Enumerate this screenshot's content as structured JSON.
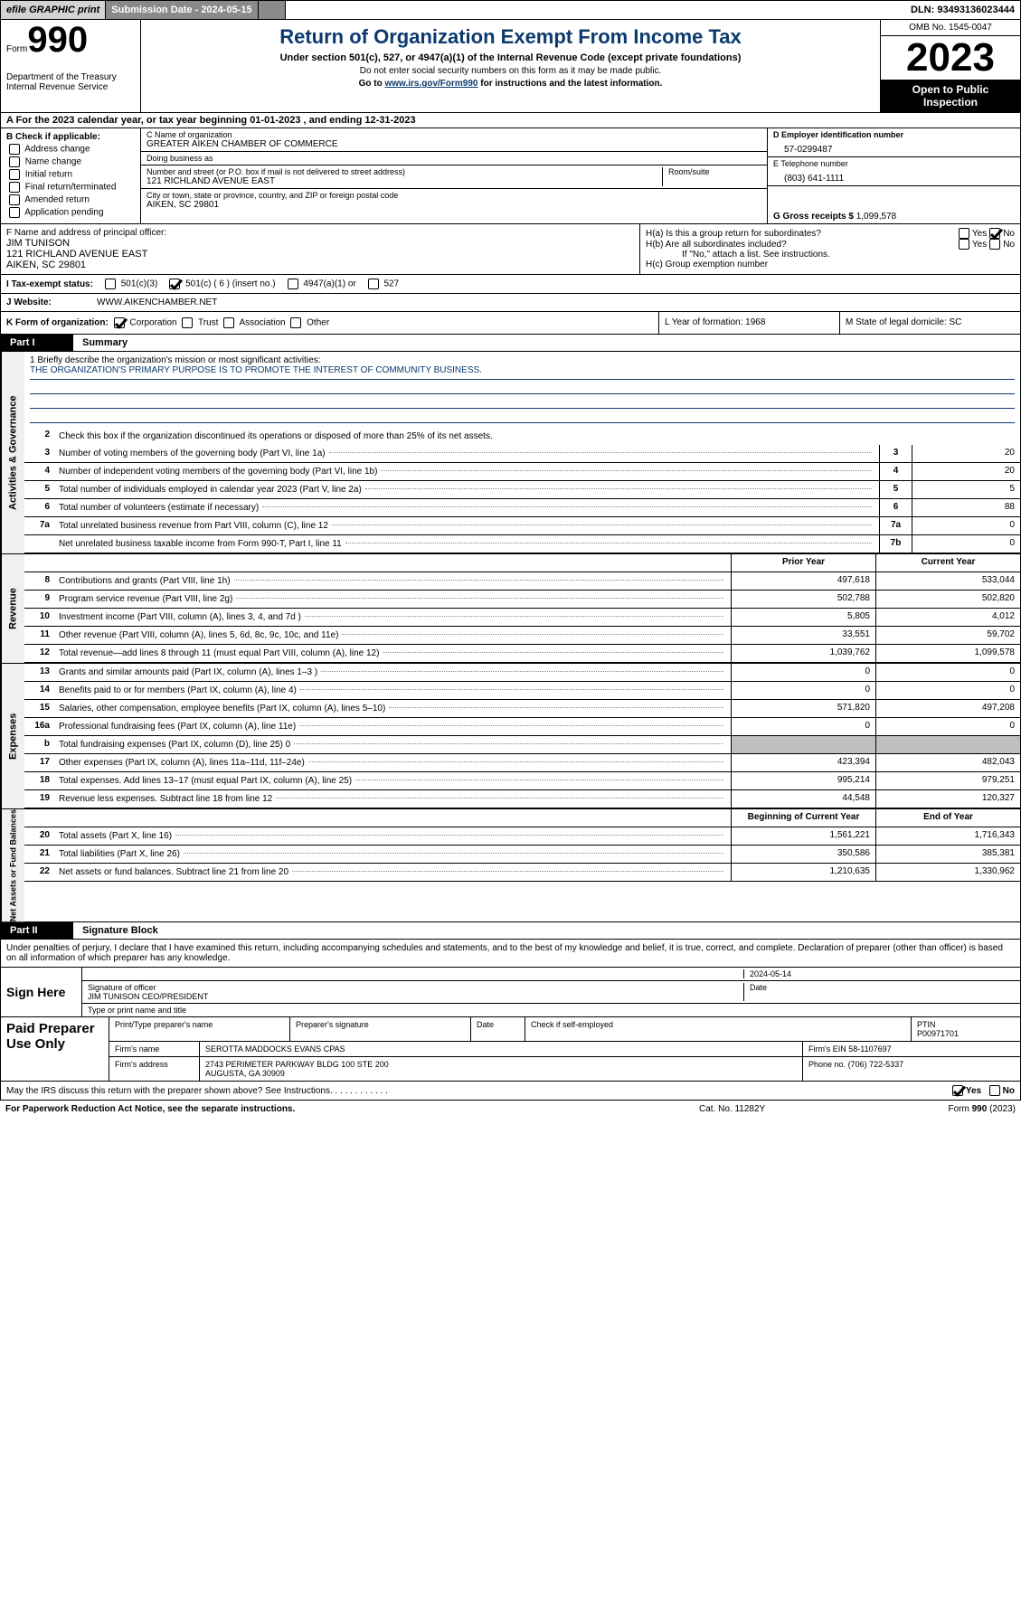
{
  "topbar": {
    "efile": "efile GRAPHIC print",
    "submission": "Submission Date - 2024-05-15",
    "dln": "DLN: 93493136023444"
  },
  "header": {
    "form_label": "Form",
    "form_no": "990",
    "dept": "Department of the Treasury Internal Revenue Service",
    "title": "Return of Organization Exempt From Income Tax",
    "sub": "Under section 501(c), 527, or 4947(a)(1) of the Internal Revenue Code (except private foundations)",
    "note1": "Do not enter social security numbers on this form as it may be made public.",
    "goto_pre": "Go to ",
    "goto_link": "www.irs.gov/Form990",
    "goto_post": " for instructions and the latest information.",
    "omb": "OMB No. 1545-0047",
    "year": "2023",
    "open": "Open to Public Inspection"
  },
  "line_a": "A  For the 2023 calendar year, or tax year beginning 01-01-2023    , and ending 12-31-2023",
  "col_b": {
    "hdr": "B Check if applicable:",
    "items": [
      "Address change",
      "Name change",
      "Initial return",
      "Final return/terminated",
      "Amended return",
      "Application pending"
    ]
  },
  "col_c": {
    "name_lbl": "C Name of organization",
    "name": "GREATER AIKEN CHAMBER OF COMMERCE",
    "dba_lbl": "Doing business as",
    "dba": "",
    "addr_lbl": "Number and street (or P.O. box if mail is not delivered to street address)",
    "addr": "121 RICHLAND AVENUE EAST",
    "room_lbl": "Room/suite",
    "city_lbl": "City or town, state or province, country, and ZIP or foreign postal code",
    "city": "AIKEN, SC  29801"
  },
  "col_d": {
    "ein_lbl": "D Employer identification number",
    "ein": "57-0299487",
    "tel_lbl": "E Telephone number",
    "tel": "(803) 641-1111",
    "gross_lbl": "G Gross receipts $",
    "gross": "1,099,578"
  },
  "officer": {
    "lbl": "F  Name and address of principal officer:",
    "name": "JIM TUNISON",
    "addr1": "121 RICHLAND AVENUE EAST",
    "addr2": "AIKEN, SC  29801"
  },
  "h_block": {
    "ha": "H(a)  Is this a group return for subordinates?",
    "hb": "H(b)  Are all subordinates included?",
    "hb_note": "If \"No,\" attach a list. See instructions.",
    "hc": "H(c)  Group exemption number"
  },
  "exempt": {
    "lbl": "I   Tax-exempt status:",
    "o1": "501(c)(3)",
    "o2": "501(c) ( 6 ) (insert no.)",
    "o3": "4947(a)(1) or",
    "o4": "527"
  },
  "website": {
    "lbl": "J   Website:",
    "val": "WWW.AIKENCHAMBER.NET"
  },
  "row_k": {
    "lbl": "K Form of organization:",
    "opts": [
      "Corporation",
      "Trust",
      "Association",
      "Other"
    ],
    "l": "L Year of formation: 1968",
    "m": "M State of legal domicile: SC"
  },
  "part1": {
    "num": "Part I",
    "title": "Summary"
  },
  "mission": {
    "q": "1   Briefly describe the organization's mission or most significant activities:",
    "a": "THE ORGANIZATION'S PRIMARY PURPOSE IS TO PROMOTE THE INTEREST OF COMMUNITY BUSINESS."
  },
  "gov_section": {
    "vtab": "Activities & Governance",
    "l2": "Check this box        if the organization discontinued its operations or disposed of more than 25% of its net assets.",
    "rows": [
      {
        "n": "3",
        "d": "Number of voting members of the governing body (Part VI, line 1a)",
        "c": "3",
        "v": "20"
      },
      {
        "n": "4",
        "d": "Number of independent voting members of the governing body (Part VI, line 1b)",
        "c": "4",
        "v": "20"
      },
      {
        "n": "5",
        "d": "Total number of individuals employed in calendar year 2023 (Part V, line 2a)",
        "c": "5",
        "v": "5"
      },
      {
        "n": "6",
        "d": "Total number of volunteers (estimate if necessary)",
        "c": "6",
        "v": "88"
      },
      {
        "n": "7a",
        "d": "Total unrelated business revenue from Part VIII, column (C), line 12",
        "c": "7a",
        "v": "0"
      },
      {
        "n": "",
        "d": "Net unrelated business taxable income from Form 990-T, Part I, line 11",
        "c": "7b",
        "v": "0"
      }
    ]
  },
  "rev_section": {
    "vtab": "Revenue",
    "hdr_prior": "Prior Year",
    "hdr_curr": "Current Year",
    "rows": [
      {
        "n": "8",
        "d": "Contributions and grants (Part VIII, line 1h)",
        "p": "497,618",
        "c": "533,044"
      },
      {
        "n": "9",
        "d": "Program service revenue (Part VIII, line 2g)",
        "p": "502,788",
        "c": "502,820"
      },
      {
        "n": "10",
        "d": "Investment income (Part VIII, column (A), lines 3, 4, and 7d )",
        "p": "5,805",
        "c": "4,012"
      },
      {
        "n": "11",
        "d": "Other revenue (Part VIII, column (A), lines 5, 6d, 8c, 9c, 10c, and 11e)",
        "p": "33,551",
        "c": "59,702"
      },
      {
        "n": "12",
        "d": "Total revenue—add lines 8 through 11 (must equal Part VIII, column (A), line 12)",
        "p": "1,039,762",
        "c": "1,099,578"
      }
    ]
  },
  "exp_section": {
    "vtab": "Expenses",
    "rows": [
      {
        "n": "13",
        "d": "Grants and similar amounts paid (Part IX, column (A), lines 1–3 )",
        "p": "0",
        "c": "0"
      },
      {
        "n": "14",
        "d": "Benefits paid to or for members (Part IX, column (A), line 4)",
        "p": "0",
        "c": "0"
      },
      {
        "n": "15",
        "d": "Salaries, other compensation, employee benefits (Part IX, column (A), lines 5–10)",
        "p": "571,820",
        "c": "497,208"
      },
      {
        "n": "16a",
        "d": "Professional fundraising fees (Part IX, column (A), line 11e)",
        "p": "0",
        "c": "0"
      },
      {
        "n": "b",
        "d": "Total fundraising expenses (Part IX, column (D), line 25) 0",
        "p": "",
        "c": "",
        "grey": true
      },
      {
        "n": "17",
        "d": "Other expenses (Part IX, column (A), lines 11a–11d, 11f–24e)",
        "p": "423,394",
        "c": "482,043"
      },
      {
        "n": "18",
        "d": "Total expenses. Add lines 13–17 (must equal Part IX, column (A), line 25)",
        "p": "995,214",
        "c": "979,251"
      },
      {
        "n": "19",
        "d": "Revenue less expenses. Subtract line 18 from line 12",
        "p": "44,548",
        "c": "120,327"
      }
    ]
  },
  "net_section": {
    "vtab": "Net Assets or Fund Balances",
    "hdr_beg": "Beginning of Current Year",
    "hdr_end": "End of Year",
    "rows": [
      {
        "n": "20",
        "d": "Total assets (Part X, line 16)",
        "p": "1,561,221",
        "c": "1,716,343"
      },
      {
        "n": "21",
        "d": "Total liabilities (Part X, line 26)",
        "p": "350,586",
        "c": "385,381"
      },
      {
        "n": "22",
        "d": "Net assets or fund balances. Subtract line 21 from line 20",
        "p": "1,210,635",
        "c": "1,330,962"
      }
    ]
  },
  "part2": {
    "num": "Part II",
    "title": "Signature Block"
  },
  "sig_intro": "Under penalties of perjury, I declare that I have examined this return, including accompanying schedules and statements, and to the best of my knowledge and belief, it is true, correct, and complete. Declaration of preparer (other than officer) is based on all information of which preparer has any knowledge.",
  "sign": {
    "lbl": "Sign Here",
    "date": "2024-05-14",
    "sig_lbl": "Signature of officer",
    "officer": "JIM TUNISON CEO/PRESIDENT",
    "type_lbl": "Type or print name and title",
    "date_lbl": "Date"
  },
  "prep": {
    "lbl": "Paid Preparer Use Only",
    "pname_lbl": "Print/Type preparer's name",
    "psig_lbl": "Preparer's signature",
    "pdate_lbl": "Date",
    "self_lbl": "Check         if self-employed",
    "ptin_lbl": "PTIN",
    "ptin": "P00971701",
    "firm_lbl": "Firm's name",
    "firm": "SEROTTA MADDOCKS EVANS CPAS",
    "fein_lbl": "Firm's EIN",
    "fein": "58-1107697",
    "faddr_lbl": "Firm's address",
    "faddr": "2743 PERIMETER PARKWAY BLDG 100 STE 200\nAUGUSTA, GA  30909",
    "phone_lbl": "Phone no.",
    "phone": "(706) 722-5337"
  },
  "discuss": "May the IRS discuss this return with the preparer shown above? See Instructions.",
  "footer": {
    "f1": "For Paperwork Reduction Act Notice, see the separate instructions.",
    "f2": "Cat. No. 11282Y",
    "f3_pre": "Form ",
    "f3_b": "990",
    "f3_post": " (2023)"
  },
  "yes": "Yes",
  "no": "No"
}
